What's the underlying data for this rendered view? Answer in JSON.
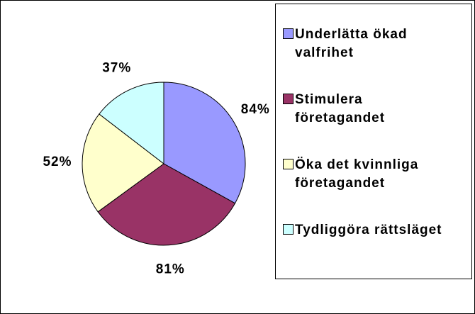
{
  "chart_data": {
    "type": "pie",
    "categories": [
      "Underlätta ökad valfrihet",
      "Stimulera företagandet",
      "Öka det kvinnliga företagandet",
      "Tydliggöra rättsläget"
    ],
    "values": [
      84,
      81,
      52,
      37
    ],
    "value_labels": [
      "84%",
      "81%",
      "52%",
      "37%"
    ],
    "colors": [
      "#9999ff",
      "#993366",
      "#ffffcc",
      "#ccffff"
    ],
    "legend": "right"
  }
}
